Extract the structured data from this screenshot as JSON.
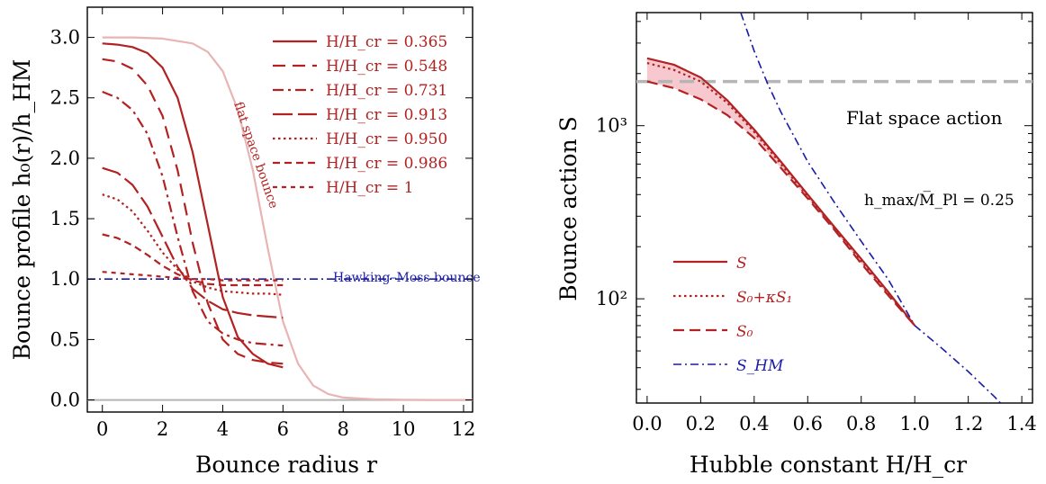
{
  "chart_data": [
    {
      "type": "line",
      "xlabel": "Bounce radius r",
      "ylabel": "Bounce profile h₀(r)/h_HM",
      "xlim": [
        -0.5,
        12.3
      ],
      "ylim": [
        -0.1,
        3.25
      ],
      "x_ticks": [
        "0",
        "2",
        "4",
        "6",
        "8",
        "10",
        "12"
      ],
      "y_ticks": [
        "0.0",
        "0.5",
        "1.0",
        "1.5",
        "2.0",
        "2.5",
        "3.0"
      ],
      "grid": false,
      "legend_position": "top-right",
      "annotations": [
        {
          "text": "flat space bounce",
          "x": 5.6,
          "y": 2.0
        },
        {
          "text": "Hawking–Moss bounce",
          "x": 9.0,
          "y": 0.9
        }
      ],
      "series": [
        {
          "name": "H/H_cr = 0.365",
          "style": "solid",
          "x": [
            0,
            0.5,
            1,
            1.5,
            2,
            2.5,
            3,
            3.5,
            4,
            4.5,
            5,
            5.5,
            6
          ],
          "y": [
            2.95,
            2.94,
            2.92,
            2.87,
            2.75,
            2.5,
            2.05,
            1.45,
            0.85,
            0.52,
            0.38,
            0.3,
            0.27
          ]
        },
        {
          "name": "H/H_cr = 0.548",
          "style": "dash-long",
          "x": [
            0,
            0.5,
            1,
            1.5,
            2,
            2.5,
            3,
            3.5,
            4,
            4.5,
            5,
            5.5,
            6
          ],
          "y": [
            2.82,
            2.8,
            2.74,
            2.6,
            2.35,
            1.9,
            1.3,
            0.8,
            0.5,
            0.38,
            0.33,
            0.31,
            0.3
          ]
        },
        {
          "name": "H/H_cr = 0.731",
          "style": "dash-dot",
          "x": [
            0,
            0.5,
            1,
            1.5,
            2,
            2.5,
            3,
            3.5,
            4,
            4.5,
            5,
            5.5,
            6
          ],
          "y": [
            2.55,
            2.5,
            2.4,
            2.2,
            1.85,
            1.35,
            0.9,
            0.65,
            0.55,
            0.5,
            0.47,
            0.46,
            0.45
          ]
        },
        {
          "name": "H/H_cr = 0.913",
          "style": "long-dash-solid",
          "x": [
            0,
            0.5,
            1,
            1.5,
            2,
            2.5,
            3,
            3.5,
            4,
            4.5,
            5,
            5.5,
            6
          ],
          "y": [
            1.92,
            1.88,
            1.78,
            1.6,
            1.35,
            1.1,
            0.92,
            0.82,
            0.75,
            0.72,
            0.7,
            0.69,
            0.68
          ]
        },
        {
          "name": "H/H_cr = 0.950",
          "style": "dotted",
          "x": [
            0,
            0.5,
            1,
            1.5,
            2,
            2.5,
            3,
            3.5,
            4,
            4.5,
            5,
            5.5,
            6
          ],
          "y": [
            1.7,
            1.66,
            1.56,
            1.4,
            1.22,
            1.08,
            0.98,
            0.93,
            0.9,
            0.89,
            0.88,
            0.88,
            0.87
          ]
        },
        {
          "name": "H/H_cr = 0.986",
          "style": "dash-medium",
          "x": [
            0,
            0.5,
            1,
            1.5,
            2,
            2.5,
            3,
            3.5,
            4,
            4.5,
            5,
            5.5,
            6
          ],
          "y": [
            1.37,
            1.34,
            1.28,
            1.2,
            1.11,
            1.04,
            0.99,
            0.96,
            0.95,
            0.95,
            0.95,
            0.95,
            0.95
          ]
        },
        {
          "name": "H/H_cr = 1",
          "style": "dash-short",
          "x": [
            0,
            0.5,
            1,
            1.5,
            2,
            2.5,
            3,
            3.5,
            4,
            4.5,
            5,
            5.5,
            6
          ],
          "y": [
            1.06,
            1.05,
            1.04,
            1.03,
            1.02,
            1.01,
            1.0,
            1.0,
            0.99,
            0.99,
            0.99,
            0.99,
            0.99
          ]
        },
        {
          "style": "solid-light",
          "x": [
            0,
            1,
            2,
            3,
            3.5,
            4,
            4.5,
            5,
            5.5,
            6,
            6.5,
            7,
            7.5,
            8,
            9,
            10,
            11,
            12.3
          ],
          "y": [
            3.0,
            3.0,
            2.99,
            2.95,
            2.88,
            2.72,
            2.4,
            1.9,
            1.25,
            0.65,
            0.3,
            0.12,
            0.05,
            0.02,
            0.005,
            0.001,
            0,
            0
          ]
        },
        {
          "style": "dash-dot-blue",
          "x": [
            -0.5,
            12.3
          ],
          "y": [
            1.0,
            1.0
          ]
        },
        {
          "style": "solid-gray",
          "x": [
            -0.5,
            12.3
          ],
          "y": [
            0.0,
            0.0
          ]
        }
      ]
    },
    {
      "type": "line",
      "xlabel": "Hubble constant H/H_cr",
      "ylabel": "Bounce action S",
      "xlim": [
        -0.04,
        1.44
      ],
      "ylim": [
        25,
        4500
      ],
      "yscale": "log",
      "x_ticks": [
        "0.0",
        "0.2",
        "0.4",
        "0.6",
        "0.8",
        "1.0",
        "1.2",
        "1.4"
      ],
      "y_ticks": [
        "10²",
        "10³"
      ],
      "grid": false,
      "legend_position": "bottom-left",
      "annotations": [
        {
          "text": "Flat space action",
          "x": 1.0,
          "y": 1500
        },
        {
          "text": "h_max/M̅_Pl = 0.25",
          "x": 1.0,
          "y": 650
        }
      ],
      "series": [
        {
          "name": "S",
          "style": "solid",
          "x": [
            0,
            0.1,
            0.2,
            0.3,
            0.4,
            0.5,
            0.6,
            0.7,
            0.8,
            0.9,
            1.0
          ],
          "y": [
            2450,
            2250,
            1900,
            1400,
            950,
            620,
            400,
            260,
            170,
            110,
            70
          ]
        },
        {
          "name": "S₀+κS₁",
          "style": "dotted",
          "x": [
            0,
            0.1,
            0.2,
            0.3,
            0.4,
            0.5,
            0.6,
            0.7,
            0.8,
            0.9,
            1.0
          ],
          "y": [
            2300,
            2100,
            1800,
            1350,
            920,
            600,
            390,
            255,
            165,
            108,
            70
          ]
        },
        {
          "name": "S₀",
          "style": "dashed",
          "x": [
            0,
            0.1,
            0.2,
            0.3,
            0.4,
            0.5,
            0.6,
            0.7,
            0.8,
            0.9,
            1.0
          ],
          "y": [
            1800,
            1650,
            1420,
            1150,
            850,
            570,
            380,
            250,
            160,
            105,
            70
          ]
        },
        {
          "name": "S_HM",
          "style": "dash-dot-blue",
          "x": [
            0.35,
            0.4,
            0.45,
            0.5,
            0.6,
            0.7,
            0.8,
            0.9,
            1.0,
            1.1,
            1.2,
            1.3,
            1.32
          ],
          "y": [
            4500,
            2700,
            1750,
            1200,
            620,
            360,
            215,
            130,
            70,
            52,
            38,
            27,
            25
          ]
        },
        {
          "style": "dashed-gray",
          "x": [
            -0.04,
            1.44
          ],
          "y": [
            1800,
            1800
          ]
        }
      ]
    }
  ]
}
